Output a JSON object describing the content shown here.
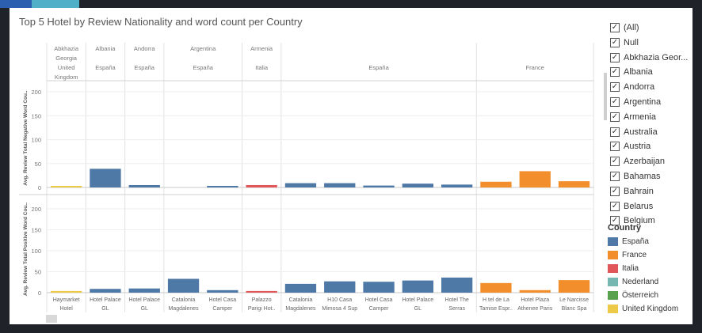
{
  "title": "Top 5 Hotel by Review Nationality and word count per Country",
  "chart_data": {
    "type": "bar",
    "title": "Top 5 Hotel by Review Nationality and word count per Country",
    "nationality_columns": [
      {
        "lines": [
          "Abkhazia",
          "Georgia",
          "United",
          "Kingdom"
        ]
      },
      {
        "lines": [
          "Albania",
          "",
          "España"
        ]
      },
      {
        "lines": [
          "Andorra",
          "",
          "España"
        ]
      },
      {
        "lines": [
          "Argentina",
          "",
          "España"
        ]
      },
      {
        "lines": [
          "Armenia",
          "",
          "Italia"
        ]
      },
      {
        "lines": [
          "",
          "",
          "España"
        ]
      },
      {
        "lines": [
          "",
          "",
          "France"
        ]
      }
    ],
    "hotels": [
      {
        "name": [
          "Haymarket",
          "Hotel"
        ],
        "country": "United Kingdom",
        "neg": 2,
        "pos": 4
      },
      {
        "name": [
          "Hotel Palace",
          "GL"
        ],
        "country": "España",
        "neg": 39,
        "pos": 9
      },
      {
        "name": [
          "Hotel Palace",
          "GL"
        ],
        "country": "España",
        "neg": 5,
        "pos": 10
      },
      {
        "name": [
          "Catalonia",
          "Magdalenes"
        ],
        "country": "España",
        "neg": 0,
        "pos": 33
      },
      {
        "name": [
          "Hotel Casa",
          "Camper"
        ],
        "country": "España",
        "neg": 3,
        "pos": 6
      },
      {
        "name": [
          "Palazzo",
          "Parigi Hot.."
        ],
        "country": "Italia",
        "neg": 5,
        "pos": 4
      },
      {
        "name": [
          "Catalonia",
          "Magdalenes"
        ],
        "country": "España",
        "neg": 9,
        "pos": 21
      },
      {
        "name": [
          "H10 Casa",
          "Mimosa 4 Sup"
        ],
        "country": "España",
        "neg": 9,
        "pos": 27
      },
      {
        "name": [
          "Hotel Casa",
          "Camper"
        ],
        "country": "España",
        "neg": 4,
        "pos": 26
      },
      {
        "name": [
          "Hotel Palace",
          "GL"
        ],
        "country": "España",
        "neg": 8,
        "pos": 29
      },
      {
        "name": [
          "Hotel The",
          "Serras"
        ],
        "country": "España",
        "neg": 6,
        "pos": 36
      },
      {
        "name": [
          "H tel de La",
          "Tamise Espr.."
        ],
        "country": "France",
        "neg": 12,
        "pos": 23
      },
      {
        "name": [
          "Hotel Plaza",
          "Athenee Paris"
        ],
        "country": "France",
        "neg": 34,
        "pos": 6
      },
      {
        "name": [
          "Le Narcisse",
          "Blanc Spa"
        ],
        "country": "France",
        "neg": 13,
        "pos": 30
      }
    ],
    "group_sizes": [
      1,
      1,
      1,
      2,
      1,
      5,
      3
    ],
    "top_panel": {
      "ylabel": "Avg. Review Total Negative Word Cou..",
      "ylim": [
        0,
        210
      ],
      "ticks": [
        0,
        50,
        100,
        150,
        200
      ]
    },
    "bottom_panel": {
      "ylabel": "Avg. Review Total Positive Word Cou..",
      "ylim": [
        0,
        210
      ],
      "ticks": [
        0,
        50,
        100,
        150,
        200
      ]
    },
    "grid": true
  },
  "colors": {
    "España": "#4e79a7",
    "France": "#f28e2b",
    "Italia": "#e15759",
    "Nederland": "#76b7b2",
    "Österreich": "#59a14f",
    "United Kingdom": "#edc948"
  },
  "filter": {
    "check_mark": "✓",
    "items": [
      "(All)",
      "Null",
      "Abkhazia Geor...",
      "Albania",
      "Andorra",
      "Argentina",
      "Armenia",
      "Australia",
      "Austria",
      "Azerbaijan",
      "Bahamas",
      "Bahrain",
      "Belarus",
      "Belgium"
    ]
  },
  "legend": {
    "title": "Country",
    "items": [
      "España",
      "France",
      "Italia",
      "Nederland",
      "Österreich",
      "United Kingdom"
    ]
  }
}
